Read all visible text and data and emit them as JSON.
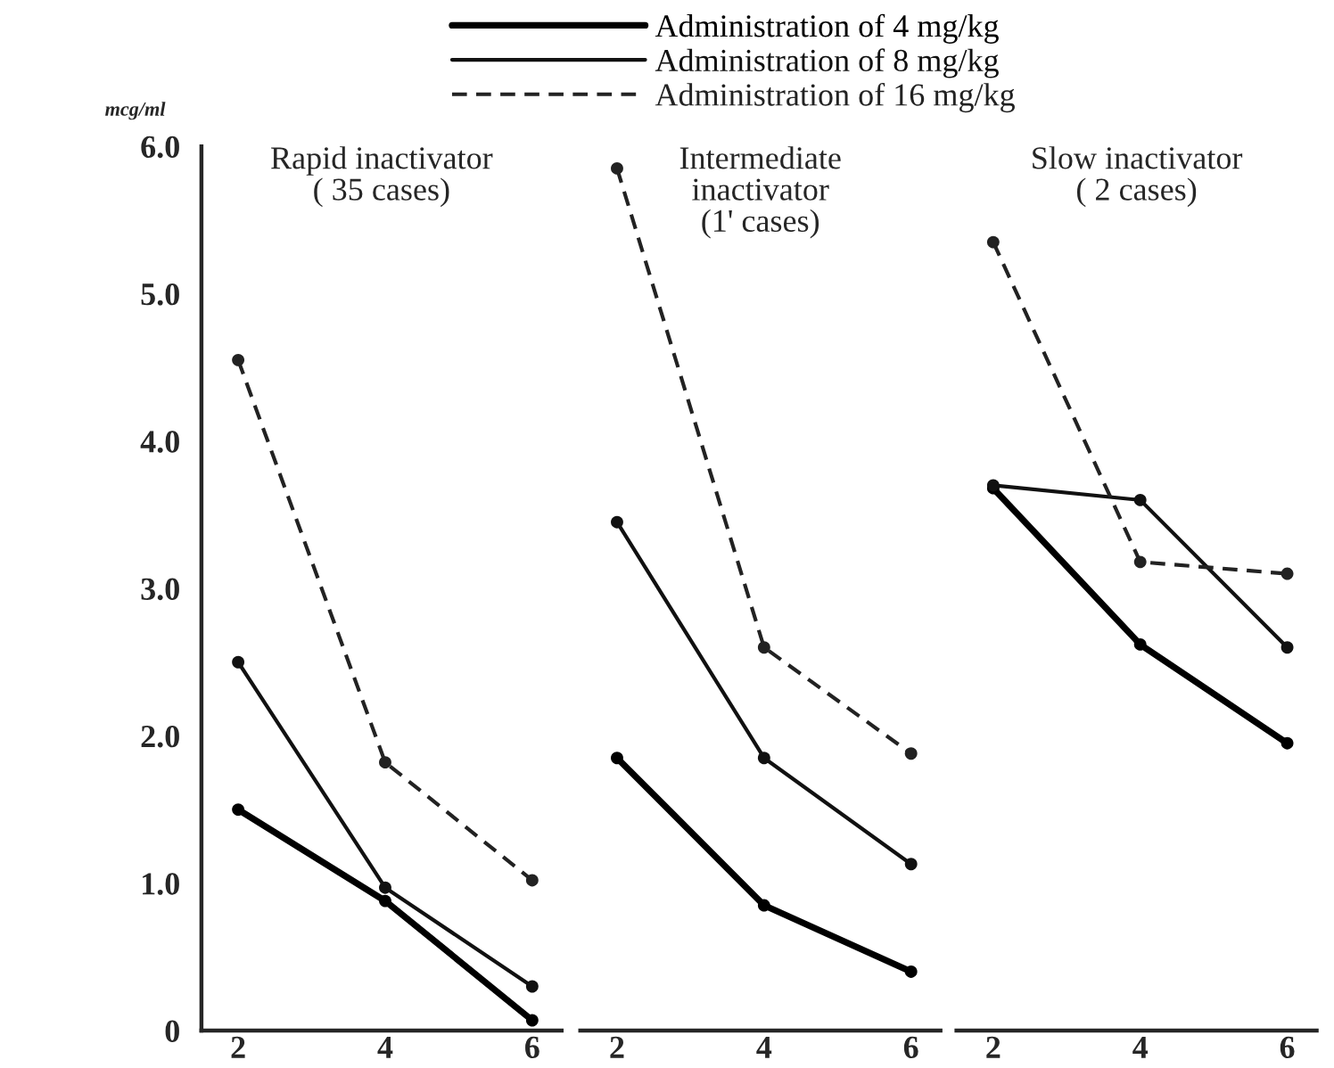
{
  "chart_data": [
    {
      "type": "line",
      "title": "Rapid inactivator\n( 35 cases)",
      "ylabel": "mcg/ml",
      "x": [
        2,
        4,
        6
      ],
      "xlim": [
        1.5,
        6.4
      ],
      "xticks": [
        2,
        4,
        6
      ],
      "ylim": [
        0,
        6
      ],
      "yticks": [
        {
          "value": 0,
          "label": "0"
        },
        {
          "value": 1,
          "label": "1.0"
        },
        {
          "value": 2,
          "label": "2.0"
        },
        {
          "value": 3,
          "label": "3.0"
        },
        {
          "value": 4,
          "label": "4.0"
        },
        {
          "value": 5,
          "label": "5.0"
        },
        {
          "value": 6,
          "label": "6.0"
        }
      ],
      "marker": "circle",
      "legend": "top",
      "grid": false,
      "series": [
        {
          "name": "Administration of 4 mg/kg",
          "color": "#000000",
          "line_style": "solid",
          "values": [
            1.5,
            0.88,
            0.07
          ]
        },
        {
          "name": "Administration of 8 mg/kg",
          "color": "#111111",
          "line_style": "solid",
          "values": [
            2.5,
            0.97,
            0.3
          ]
        },
        {
          "name": "Administration of 16 mg/kg",
          "color": "#222222",
          "line_style": "dashed",
          "values": [
            4.55,
            1.82,
            1.02
          ]
        }
      ]
    },
    {
      "type": "line",
      "title": "Intermediate\ninactivator\n(1' cases)",
      "x": [
        2,
        4,
        6
      ],
      "xlim": [
        1.5,
        6.4
      ],
      "xticks": [
        2,
        4,
        6
      ],
      "ylim": [
        0,
        6
      ],
      "tick_labels": "x",
      "marker": "circle",
      "grid": false,
      "series": [
        {
          "color": "#000000",
          "line_style": "solid",
          "values": [
            1.85,
            0.85,
            0.4
          ]
        },
        {
          "color": "#111111",
          "line_style": "solid",
          "values": [
            3.45,
            1.85,
            1.13
          ]
        },
        {
          "color": "#222222",
          "line_style": "dashed",
          "values": [
            5.85,
            2.6,
            1.88
          ]
        }
      ]
    },
    {
      "type": "line",
      "title": "Slow inactivator\n( 2 cases)",
      "x": [
        2,
        4,
        6
      ],
      "xlim": [
        1.5,
        6.4
      ],
      "xticks": [
        2,
        4,
        6
      ],
      "ylim": [
        0,
        6
      ],
      "tick_labels": "x",
      "marker": "circle",
      "grid": false,
      "series": [
        {
          "color": "#000000",
          "line_style": "solid",
          "values": [
            3.68,
            2.62,
            1.95
          ]
        },
        {
          "color": "#111111",
          "line_style": "solid",
          "values": [
            3.7,
            3.6,
            2.6
          ]
        },
        {
          "color": "#222222",
          "line_style": "dashed",
          "values": [
            5.35,
            3.18,
            3.1
          ]
        }
      ]
    }
  ]
}
